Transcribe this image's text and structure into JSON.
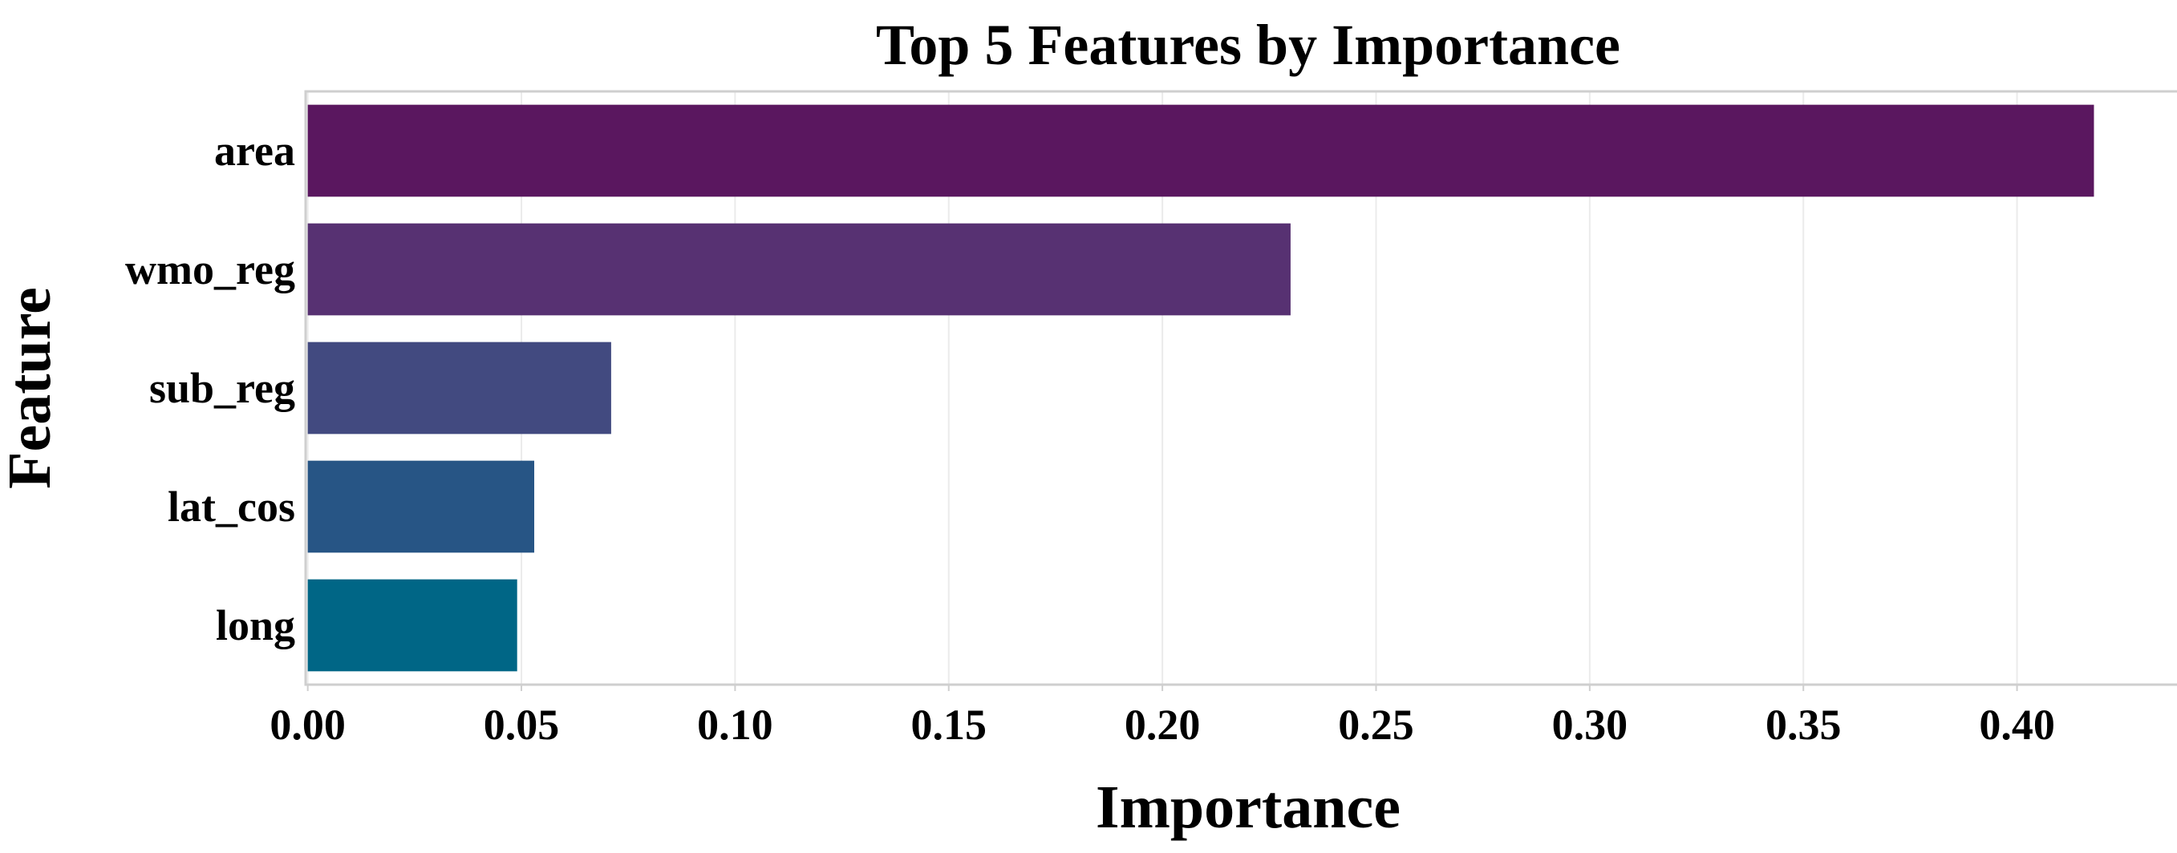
{
  "chart_data": {
    "type": "bar",
    "orientation": "horizontal",
    "title": "Top 5 Features by Importance",
    "xlabel": "Importance",
    "ylabel": "Feature",
    "categories": [
      "area",
      "wmo_reg",
      "sub_reg",
      "lat_cos",
      "long"
    ],
    "values": [
      0.418,
      0.23,
      0.071,
      0.053,
      0.049
    ],
    "colors": [
      "#5a175f",
      "#573172",
      "#424a80",
      "#275585",
      "#006686"
    ],
    "xlim": [
      -0.0005,
      0.4395
    ],
    "xticks": [
      0.0,
      0.05,
      0.1,
      0.15,
      0.2,
      0.25,
      0.3,
      0.35,
      0.4
    ],
    "xtick_labels": [
      "0.00",
      "0.05",
      "0.10",
      "0.15",
      "0.20",
      "0.25",
      "0.30",
      "0.35",
      "0.40"
    ],
    "grid": true,
    "legend": "none"
  }
}
